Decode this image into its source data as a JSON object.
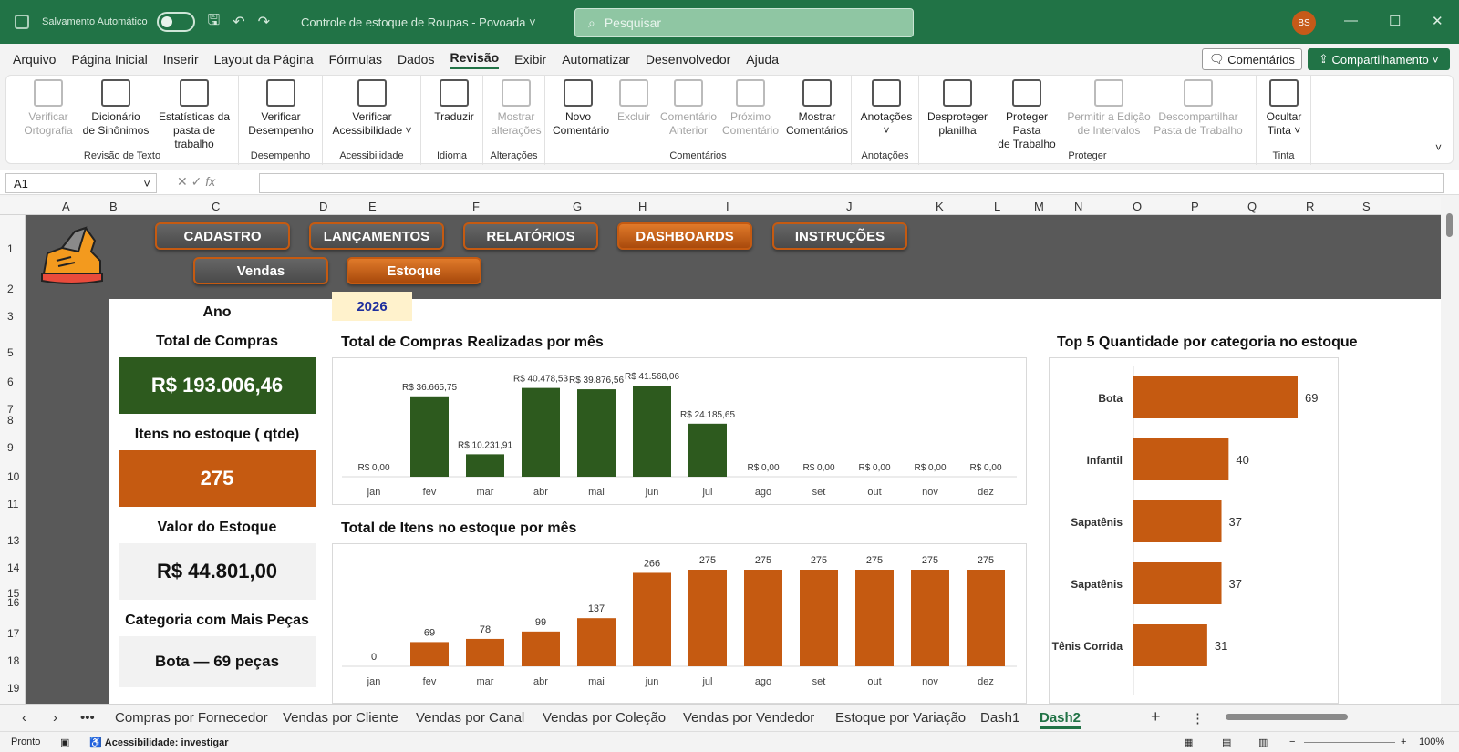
{
  "titlebar": {
    "autosave_label": "Salvamento Automático",
    "doc_title": "Controle de estoque de Roupas - Povoada",
    "search_placeholder": "Pesquisar",
    "avatar_initials": "BS"
  },
  "menu": {
    "items": [
      "Arquivo",
      "Página Inicial",
      "Inserir",
      "Layout da Página",
      "Fórmulas",
      "Dados",
      "Revisão",
      "Exibir",
      "Automatizar",
      "Desenvolvedor",
      "Ajuda"
    ],
    "active": "Revisão",
    "comments_label": "Comentários",
    "share_label": "Compartilhamento"
  },
  "ribbon": {
    "groups": [
      {
        "label": "Revisão de Texto",
        "buttons": [
          {
            "l1": "Verificar",
            "l2": "Ortografia",
            "dis": true
          },
          {
            "l1": "Dicionário",
            "l2": "de Sinônimos",
            "dis": false
          },
          {
            "l1": "Estatísticas da",
            "l2": "pasta de trabalho",
            "dis": false
          }
        ]
      },
      {
        "label": "Desempenho",
        "buttons": [
          {
            "l1": "Verificar",
            "l2": "Desempenho",
            "dis": false
          }
        ]
      },
      {
        "label": "Acessibilidade",
        "buttons": [
          {
            "l1": "Verificar",
            "l2": "Acessibilidade ˅",
            "dis": false
          }
        ]
      },
      {
        "label": "Idioma",
        "buttons": [
          {
            "l1": "Traduzir",
            "l2": "",
            "dis": false
          }
        ]
      },
      {
        "label": "Alterações",
        "buttons": [
          {
            "l1": "Mostrar",
            "l2": "alterações",
            "dis": true
          }
        ]
      },
      {
        "label": "Comentários",
        "buttons": [
          {
            "l1": "Novo",
            "l2": "Comentário",
            "dis": false
          },
          {
            "l1": "Excluir",
            "l2": "",
            "dis": true
          },
          {
            "l1": "Comentário",
            "l2": "Anterior",
            "dis": true
          },
          {
            "l1": "Próximo",
            "l2": "Comentário",
            "dis": true
          },
          {
            "l1": "Mostrar",
            "l2": "Comentários",
            "dis": false
          }
        ]
      },
      {
        "label": "Anotações",
        "buttons": [
          {
            "l1": "Anotações",
            "l2": "˅",
            "dis": false
          }
        ]
      },
      {
        "label": "Proteger",
        "buttons": [
          {
            "l1": "Desproteger",
            "l2": "planilha",
            "dis": false
          },
          {
            "l1": "Proteger Pasta",
            "l2": "de Trabalho",
            "dis": false
          },
          {
            "l1": "Permitir a Edição",
            "l2": "de Intervalos",
            "dis": true
          },
          {
            "l1": "Descompartilhar",
            "l2": "Pasta de Trabalho",
            "dis": true
          }
        ]
      },
      {
        "label": "Tinta",
        "buttons": [
          {
            "l1": "Ocultar",
            "l2": "Tinta ˅",
            "dis": false
          }
        ]
      }
    ]
  },
  "formula": {
    "namebox": "A1",
    "fx": "fx"
  },
  "columns": [
    "A",
    "B",
    "C",
    "D",
    "E",
    "F",
    "G",
    "H",
    "I",
    "J",
    "K",
    "L",
    "M",
    "N",
    "O",
    "P",
    "Q",
    "R",
    "S"
  ],
  "rows": [
    "1",
    "2",
    "3",
    "5",
    "6",
    "7",
    "8",
    "9",
    "10",
    "11",
    "13",
    "14",
    "15",
    "16",
    "17",
    "18",
    "19"
  ],
  "dashboard": {
    "nav": [
      "CADASTRO",
      "LANÇAMENTOS",
      "RELATÓRIOS",
      "DASHBOARDS",
      "INSTRUÇÕES"
    ],
    "nav_active": "DASHBOARDS",
    "subnav": [
      "Vendas",
      "Estoque"
    ],
    "subnav_active": "Estoque",
    "year_label": "Ano",
    "year_value": "2026",
    "kpis": [
      {
        "label": "Total de Compras",
        "value": "R$ 193.006,46",
        "bg": "#2d5a1e",
        "fg": "#ffffff"
      },
      {
        "label": "Itens no estoque ( qtde)",
        "value": "275",
        "bg": "#c55a11",
        "fg": "#ffffff"
      },
      {
        "label": "Valor do Estoque",
        "value": "R$ 44.801,00",
        "bg": "#f2f2f2",
        "fg": "#111111"
      },
      {
        "label": "Categoria com Mais Peças",
        "value": "Bota — 69 peças",
        "bg": "#f2f2f2",
        "fg": "#111111"
      }
    ]
  },
  "chart_data": [
    {
      "type": "bar",
      "title": "Total de Compras Realizadas por mês",
      "categories": [
        "jan",
        "fev",
        "mar",
        "abr",
        "mai",
        "jun",
        "jul",
        "ago",
        "set",
        "out",
        "nov",
        "dez"
      ],
      "values": [
        0,
        36665.75,
        10231.91,
        40478.53,
        39876.56,
        41568.06,
        24185.65,
        0,
        0,
        0,
        0,
        0
      ],
      "labels": [
        "R$ 0,00",
        "R$ 36.665,75",
        "R$ 10.231,91",
        "R$ 40.478,53",
        "R$ 39.876,56",
        "R$ 41.568,06",
        "R$ 24.185,65",
        "R$ 0,00",
        "R$ 0,00",
        "R$ 0,00",
        "R$ 0,00",
        "R$ 0,00"
      ],
      "color": "#2d5a1e"
    },
    {
      "type": "bar",
      "title": "Total de Itens no estoque por mês",
      "categories": [
        "jan",
        "fev",
        "mar",
        "abr",
        "mai",
        "jun",
        "jul",
        "ago",
        "set",
        "out",
        "nov",
        "dez"
      ],
      "values": [
        0,
        69,
        78,
        99,
        137,
        266,
        275,
        275,
        275,
        275,
        275,
        275
      ],
      "color": "#c55a11"
    },
    {
      "type": "bar",
      "orientation": "horizontal",
      "title": "Top 5 Quantidade por categoria no estoque",
      "categories": [
        "Bota",
        "Infantil",
        "Sapatênis",
        "Sapatênis",
        "Tênis Corrida"
      ],
      "values": [
        69,
        40,
        37,
        37,
        31
      ],
      "color": "#c55a11"
    }
  ],
  "sheet_tabs": {
    "items": [
      "Compras por Fornecedor",
      "Vendas por Cliente",
      "Vendas por Canal",
      "Vendas por Coleção",
      "Vendas por Vendedor",
      "Estoque por Variação",
      "Dash1",
      "Dash2"
    ],
    "active": "Dash2"
  },
  "status": {
    "ready": "Pronto",
    "accessibility": "Acessibilidade: investigar",
    "zoom": "100%"
  }
}
